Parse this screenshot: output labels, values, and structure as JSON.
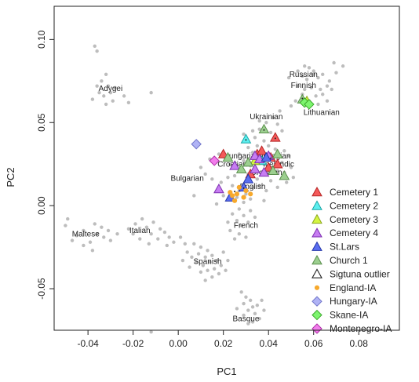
{
  "chart_data": {
    "type": "scatter",
    "xlabel": "PC1",
    "ylabel": "PC2",
    "xlim": [
      -0.055,
      0.098
    ],
    "ylim": [
      -0.075,
      0.12
    ],
    "xticks": [
      -0.04,
      -0.02,
      0.0,
      0.02,
      0.04,
      0.06,
      0.08
    ],
    "xtick_labels": [
      "-0.04",
      "-0.02",
      "0.00",
      "0.02",
      "0.04",
      "0.06",
      "0.08"
    ],
    "yticks": [
      -0.05,
      0.0,
      0.05,
      0.1
    ],
    "ytick_labels": [
      "-0.05",
      "0.00",
      "0.05",
      "0.10"
    ],
    "grid": false,
    "legend_position": "bottom-right",
    "population_labels": [
      {
        "text": "Russian",
        "x": 0.0555,
        "y": 0.0775
      },
      {
        "text": "Finnish",
        "x": 0.0555,
        "y": 0.071
      },
      {
        "text": "Lithuanian",
        "x": 0.0635,
        "y": 0.0545
      },
      {
        "text": "Ukrainian",
        "x": 0.039,
        "y": 0.052
      },
      {
        "text": "Adygei",
        "x": -0.03,
        "y": 0.069
      },
      {
        "text": "Hungarian",
        "x": 0.028,
        "y": 0.0285
      },
      {
        "text": "Norwegian",
        "x": 0.0415,
        "y": 0.0285
      },
      {
        "text": "Croatian",
        "x": 0.024,
        "y": 0.0235
      },
      {
        "text": "Icelandic",
        "x": 0.0445,
        "y": 0.0235
      },
      {
        "text": "Orcadian",
        "x": 0.039,
        "y": 0.0185
      },
      {
        "text": "Bulgarian",
        "x": 0.004,
        "y": 0.015
      },
      {
        "text": "English",
        "x": 0.033,
        "y": 0.01
      },
      {
        "text": "French",
        "x": 0.03,
        "y": -0.0135
      },
      {
        "text": "Italian",
        "x": -0.017,
        "y": -0.0165
      },
      {
        "text": "Maltese",
        "x": -0.041,
        "y": -0.0185
      },
      {
        "text": "Spanish",
        "x": 0.013,
        "y": -0.035
      },
      {
        "text": "Basque",
        "x": 0.03,
        "y": -0.0695
      }
    ],
    "reference_color": "#bdbdbd",
    "reference_points": [
      [
        -0.032,
        0.079
      ],
      [
        -0.034,
        0.075
      ],
      [
        -0.036,
        0.072
      ],
      [
        -0.031,
        0.072
      ],
      [
        -0.03,
        0.068
      ],
      [
        -0.035,
        0.068
      ],
      [
        -0.033,
        0.066
      ],
      [
        -0.038,
        0.064
      ],
      [
        -0.032,
        0.061
      ],
      [
        -0.037,
        0.096
      ],
      [
        -0.036,
        0.093
      ],
      [
        -0.028,
        0.071
      ],
      [
        -0.024,
        0.066
      ],
      [
        -0.022,
        0.062
      ],
      [
        -0.012,
        0.068
      ],
      [
        -0.029,
        0.063
      ],
      [
        0.056,
        0.084
      ],
      [
        0.058,
        0.083
      ],
      [
        0.06,
        0.081
      ],
      [
        0.053,
        0.081
      ],
      [
        0.055,
        0.078
      ],
      [
        0.06,
        0.079
      ],
      [
        0.062,
        0.077
      ],
      [
        0.064,
        0.079
      ],
      [
        0.057,
        0.076
      ],
      [
        0.053,
        0.072
      ],
      [
        0.056,
        0.07
      ],
      [
        0.059,
        0.071
      ],
      [
        0.063,
        0.07
      ],
      [
        0.066,
        0.072
      ],
      [
        0.068,
        0.07
      ],
      [
        0.055,
        0.067
      ],
      [
        0.061,
        0.066
      ],
      [
        0.064,
        0.067
      ],
      [
        0.052,
        0.063
      ],
      [
        0.058,
        0.063
      ],
      [
        0.062,
        0.061
      ],
      [
        0.066,
        0.063
      ],
      [
        0.05,
        0.06
      ],
      [
        0.069,
        0.086
      ],
      [
        0.073,
        0.084
      ],
      [
        0.07,
        0.08
      ],
      [
        0.049,
        0.077
      ],
      [
        0.067,
        0.075
      ],
      [
        0.045,
        0.057
      ],
      [
        0.042,
        0.053
      ],
      [
        0.039,
        0.05
      ],
      [
        0.044,
        0.049
      ],
      [
        0.036,
        0.046
      ],
      [
        0.041,
        0.044
      ],
      [
        0.034,
        0.041
      ],
      [
        0.038,
        0.039
      ],
      [
        0.033,
        0.045
      ],
      [
        0.046,
        0.045
      ],
      [
        0.029,
        0.043
      ],
      [
        0.036,
        0.051
      ],
      [
        0.018,
        0.031
      ],
      [
        0.021,
        0.028
      ],
      [
        0.016,
        0.027
      ],
      [
        0.023,
        0.025
      ],
      [
        0.027,
        0.031
      ],
      [
        0.031,
        0.035
      ],
      [
        0.035,
        0.036
      ],
      [
        0.033,
        0.032
      ],
      [
        0.037,
        0.034
      ],
      [
        0.04,
        0.036
      ],
      [
        0.043,
        0.034
      ],
      [
        0.045,
        0.03
      ],
      [
        0.047,
        0.033
      ],
      [
        0.049,
        0.03
      ],
      [
        0.036,
        0.028
      ],
      [
        0.038,
        0.025
      ],
      [
        0.041,
        0.022
      ],
      [
        0.044,
        0.021
      ],
      [
        0.047,
        0.02
      ],
      [
        0.05,
        0.023
      ],
      [
        0.034,
        0.021
      ],
      [
        0.031,
        0.019
      ],
      [
        0.028,
        0.021
      ],
      [
        0.025,
        0.018
      ],
      [
        0.022,
        0.017
      ],
      [
        0.019,
        0.014
      ],
      [
        0.015,
        0.016
      ],
      [
        0.012,
        0.019
      ],
      [
        0.01,
        0.023
      ],
      [
        0.014,
        0.028
      ],
      [
        0.024,
        0.012
      ],
      [
        0.027,
        0.009
      ],
      [
        0.03,
        0.007
      ],
      [
        0.033,
        0.011
      ],
      [
        0.036,
        0.012
      ],
      [
        0.039,
        0.009
      ],
      [
        0.041,
        0.015
      ],
      [
        0.035,
        0.016
      ],
      [
        0.032,
        0.004
      ],
      [
        0.029,
        0.002
      ],
      [
        0.026,
        0.005
      ],
      [
        0.023,
        0.008
      ],
      [
        0.02,
        0.006
      ],
      [
        0.038,
        0.003
      ],
      [
        0.044,
        0.011
      ],
      [
        0.048,
        0.014
      ],
      [
        0.051,
        0.017
      ],
      [
        0.046,
        0.026
      ],
      [
        0.042,
        0.029
      ],
      [
        0.039,
        0.031
      ],
      [
        0.029,
        0.027
      ],
      [
        0.026,
        0.024
      ],
      [
        0.032,
        0.024
      ],
      [
        0.027,
        -0.002
      ],
      [
        0.024,
        -0.005
      ],
      [
        0.029,
        -0.006
      ],
      [
        0.026,
        -0.009
      ],
      [
        0.031,
        -0.01
      ],
      [
        0.028,
        -0.012
      ],
      [
        0.023,
        -0.015
      ],
      [
        0.027,
        -0.017
      ],
      [
        0.032,
        -0.003
      ],
      [
        0.034,
        -0.007
      ],
      [
        0.025,
        -0.02
      ],
      [
        0.03,
        -0.019
      ],
      [
        0.022,
        -0.01
      ],
      [
        -0.011,
        -0.01
      ],
      [
        -0.014,
        -0.013
      ],
      [
        -0.008,
        -0.014
      ],
      [
        -0.012,
        -0.017
      ],
      [
        -0.009,
        -0.02
      ],
      [
        -0.006,
        -0.016
      ],
      [
        -0.004,
        -0.019
      ],
      [
        -0.002,
        -0.022
      ],
      [
        -0.005,
        -0.024
      ],
      [
        0.001,
        -0.019
      ],
      [
        0.003,
        -0.023
      ],
      [
        -0.016,
        -0.008
      ],
      [
        -0.019,
        -0.011
      ],
      [
        -0.022,
        -0.014
      ],
      [
        -0.017,
        -0.02
      ],
      [
        -0.013,
        -0.023
      ],
      [
        -0.02,
        -0.017
      ],
      [
        -0.037,
        -0.011
      ],
      [
        -0.034,
        -0.013
      ],
      [
        -0.031,
        -0.015
      ],
      [
        -0.036,
        -0.017
      ],
      [
        -0.033,
        -0.019
      ],
      [
        -0.03,
        -0.021
      ],
      [
        -0.042,
        -0.015
      ],
      [
        -0.045,
        -0.018
      ],
      [
        -0.047,
        -0.021
      ],
      [
        -0.039,
        -0.022
      ],
      [
        -0.042,
        -0.024
      ],
      [
        -0.049,
        -0.008
      ],
      [
        -0.05,
        -0.012
      ],
      [
        -0.027,
        -0.017
      ],
      [
        -0.038,
        -0.027
      ],
      [
        0.007,
        -0.023
      ],
      [
        0.01,
        -0.025
      ],
      [
        0.013,
        -0.027
      ],
      [
        0.009,
        -0.029
      ],
      [
        0.012,
        -0.031
      ],
      [
        0.015,
        -0.03
      ],
      [
        0.006,
        -0.031
      ],
      [
        0.008,
        -0.034
      ],
      [
        0.011,
        -0.036
      ],
      [
        0.014,
        -0.034
      ],
      [
        0.017,
        -0.033
      ],
      [
        0.019,
        -0.036
      ],
      [
        0.013,
        -0.039
      ],
      [
        0.01,
        -0.04
      ],
      [
        0.016,
        -0.038
      ],
      [
        0.018,
        -0.041
      ],
      [
        0.021,
        -0.039
      ],
      [
        0.005,
        -0.037
      ],
      [
        0.004,
        -0.028
      ],
      [
        0.02,
        -0.028
      ],
      [
        0.022,
        -0.033
      ],
      [
        0.015,
        -0.043
      ],
      [
        0.012,
        -0.045
      ],
      [
        0.002,
        -0.033
      ],
      [
        0.028,
        -0.052
      ],
      [
        0.03,
        -0.055
      ],
      [
        0.032,
        -0.057
      ],
      [
        0.029,
        -0.059
      ],
      [
        0.033,
        -0.061
      ],
      [
        0.031,
        -0.063
      ],
      [
        0.035,
        -0.06
      ],
      [
        0.034,
        -0.065
      ],
      [
        0.029,
        -0.066
      ],
      [
        0.036,
        -0.068
      ],
      [
        0.033,
        -0.07
      ],
      [
        0.038,
        -0.063
      ],
      [
        0.037,
        -0.057
      ],
      [
        0.026,
        -0.062
      ],
      [
        0.031,
        -0.071
      ],
      [
        -0.012,
        -0.076
      ],
      [
        0.007,
        0.006
      ],
      [
        0.017,
        0.001
      ]
    ],
    "legend": [
      {
        "name": "Cemetery 1",
        "marker": "triangle",
        "color": "#f45a5a",
        "stroke": "#b52424"
      },
      {
        "name": "Cemetery 2",
        "marker": "triangle",
        "color": "#5cefef",
        "stroke": "#1aa6a6"
      },
      {
        "name": "Cemetery 3",
        "marker": "triangle",
        "color": "#d4f542",
        "stroke": "#8aa61a"
      },
      {
        "name": "Cemetery 4",
        "marker": "triangle",
        "color": "#c77df2",
        "stroke": "#7d2fb0"
      },
      {
        "name": "St.Lars",
        "marker": "triangle",
        "color": "#5a6ef0",
        "stroke": "#2335a8"
      },
      {
        "name": "Church 1",
        "marker": "triangle",
        "color": "#9ccf8f",
        "stroke": "#5a8f4c"
      },
      {
        "name": "Sigtuna outlier",
        "marker": "outline-triangle",
        "color": "none",
        "stroke": "#222222"
      },
      {
        "name": "England-IA",
        "marker": "circle",
        "color": "#f7a92c",
        "stroke": "#f7a92c"
      },
      {
        "name": "Hungary-IA",
        "marker": "diamond",
        "color": "#b0b3f5",
        "stroke": "#7075c9"
      },
      {
        "name": "Skane-IA",
        "marker": "diamond",
        "color": "#7df56e",
        "stroke": "#3ca82d"
      },
      {
        "name": "Montenegro-IA",
        "marker": "diamond",
        "color": "#f27dec",
        "stroke": "#b02fa8"
      }
    ],
    "series": [
      {
        "legend_index": 0,
        "points": [
          [
            0.02,
            0.031
          ],
          [
            0.035,
            0.031
          ],
          [
            0.037,
            0.033
          ],
          [
            0.043,
            0.041
          ],
          [
            0.041,
            0.029
          ],
          [
            0.04,
            0.023
          ],
          [
            0.032,
            0.019
          ],
          [
            0.044,
            0.025
          ]
        ]
      },
      {
        "legend_index": 1,
        "points": [
          [
            0.03,
            0.04
          ],
          [
            0.037,
            0.027
          ]
        ]
      },
      {
        "legend_index": 2,
        "points": [
          [
            0.057,
            0.063
          ],
          [
            0.034,
            0.027
          ]
        ]
      },
      {
        "legend_index": 3,
        "points": [
          [
            0.025,
            0.024
          ],
          [
            0.034,
            0.03
          ],
          [
            0.036,
            0.028
          ],
          [
            0.034,
            0.022
          ],
          [
            0.038,
            0.02
          ],
          [
            0.018,
            0.01
          ],
          [
            0.04,
            0.03
          ]
        ]
      },
      {
        "legend_index": 4,
        "points": [
          [
            0.023,
            0.005
          ],
          [
            0.031,
            0.016
          ],
          [
            0.029,
            0.011
          ],
          [
            0.039,
            0.029
          ]
        ]
      },
      {
        "legend_index": 5,
        "points": [
          [
            0.042,
            0.021
          ],
          [
            0.047,
            0.018
          ],
          [
            0.055,
            0.064
          ],
          [
            0.038,
            0.046
          ],
          [
            0.022,
            0.029
          ],
          [
            0.028,
            0.022
          ],
          [
            0.031,
            0.026
          ],
          [
            0.044,
            0.031
          ]
        ]
      },
      {
        "legend_index": 6,
        "points": [
          [
            0.03,
            0.04
          ],
          [
            0.043,
            0.041
          ],
          [
            0.055,
            0.065
          ],
          [
            0.038,
            0.046
          ],
          [
            0.041,
            0.029
          ],
          [
            0.025,
            0.009
          ],
          [
            0.029,
            0.011
          ]
        ]
      },
      {
        "legend_index": 7,
        "points": [
          [
            0.026,
            0.007
          ],
          [
            0.029,
            0.005
          ],
          [
            0.025,
            0.003
          ],
          [
            0.03,
            0.009
          ],
          [
            0.024,
            0.006
          ],
          [
            0.027,
            0.011
          ],
          [
            0.032,
            0.007
          ],
          [
            0.023,
            0.008
          ]
        ]
      },
      {
        "legend_index": 8,
        "points": [
          [
            0.008,
            0.037
          ]
        ]
      },
      {
        "legend_index": 9,
        "points": [
          [
            0.056,
            0.062
          ],
          [
            0.058,
            0.061
          ]
        ]
      },
      {
        "legend_index": 10,
        "points": [
          [
            0.016,
            0.027
          ]
        ]
      }
    ]
  }
}
